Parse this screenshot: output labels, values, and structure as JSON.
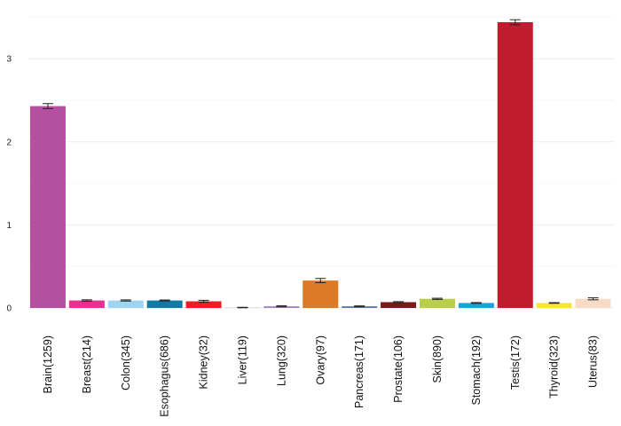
{
  "chart_data": {
    "type": "bar",
    "categories": [
      "Brain(1259)",
      "Breast(214)",
      "Colon(345)",
      "Esophagus(686)",
      "Kidney(32)",
      "Liver(119)",
      "Lung(320)",
      "Ovary(97)",
      "Pancreas(171)",
      "Prostate(106)",
      "Skin(890)",
      "Stomach(192)",
      "Testis(172)",
      "Thyroid(323)",
      "Uterus(83)"
    ],
    "values": [
      2.43,
      0.09,
      0.09,
      0.09,
      0.08,
      0.005,
      0.02,
      0.33,
      0.02,
      0.07,
      0.11,
      0.06,
      3.44,
      0.06,
      0.11
    ],
    "error": [
      0.03,
      0.008,
      0.007,
      0.006,
      0.012,
      0.003,
      0.006,
      0.025,
      0.005,
      0.006,
      0.007,
      0.005,
      0.03,
      0.004,
      0.012
    ],
    "colors": [
      "#b4509f",
      "#e6308f",
      "#9fd4f0",
      "#0f7aa4",
      "#ec1c24",
      "#cfcfcf",
      "#a984c0",
      "#dc7a26",
      "#5e78a8",
      "#7a1a1a",
      "#b9cf4a",
      "#17a4e0",
      "#c01c2f",
      "#f7e53b",
      "#f6dcc6"
    ],
    "yticks": [
      0,
      1,
      2,
      3
    ],
    "ylim": [
      0,
      3.5
    ],
    "grid": true,
    "title": "",
    "xlabel": "",
    "ylabel": ""
  }
}
